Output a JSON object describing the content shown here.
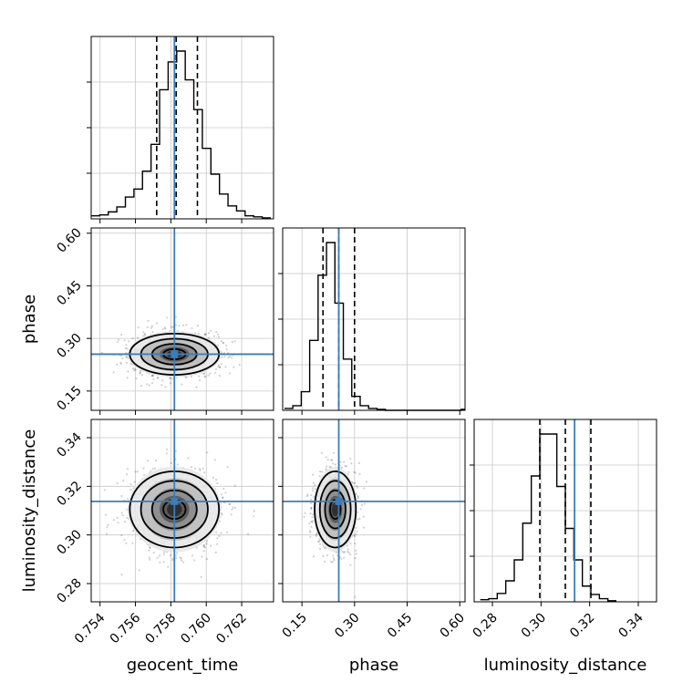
{
  "chart_data": {
    "type": "corner",
    "params": [
      {
        "name": "geocent_time",
        "label": "geocent_time",
        "range": [
          0.7535,
          0.7638
        ],
        "ticks": [
          0.754,
          0.756,
          0.758,
          0.76,
          0.762
        ],
        "tick_labels": [
          "0.754",
          "0.756",
          "0.758",
          "0.760",
          "0.762"
        ],
        "truth": 0.7582,
        "quantiles": [
          0.7572,
          0.7583,
          0.7595
        ],
        "hist_edges_start": 0.7535,
        "hist_bin_width": 0.000483,
        "hist_counts": [
          3,
          4,
          7,
          12,
          22,
          30,
          48,
          75,
          130,
          158,
          169,
          140,
          110,
          71,
          45,
          25,
          13,
          8,
          3,
          2,
          1
        ]
      },
      {
        "name": "phase",
        "label": "phase",
        "range": [
          0.095,
          0.615
        ],
        "ticks": [
          0.15,
          0.3,
          0.45,
          0.6
        ],
        "tick_labels": [
          "0.15",
          "0.30",
          "0.45",
          "0.60"
        ],
        "truth": 0.255,
        "quantiles": [
          0.21,
          0.255,
          0.3
        ],
        "hist_edges_start": 0.1,
        "hist_bin_width": 0.024,
        "hist_counts": [
          2,
          5,
          20,
          75,
          145,
          180,
          115,
          55,
          15,
          5,
          2,
          1,
          0,
          0,
          0,
          0,
          0,
          0,
          0,
          0,
          0,
          1
        ]
      },
      {
        "name": "luminosity_distance",
        "label": "luminosity_distance",
        "range": [
          0.2725,
          0.3475
        ],
        "ticks": [
          0.28,
          0.3,
          0.32,
          0.34
        ],
        "tick_labels": [
          "0.28",
          "0.30",
          "0.32",
          "0.34"
        ],
        "truth": 0.3138,
        "quantiles": [
          0.2995,
          0.31,
          0.3205
        ],
        "hist_edges_start": 0.275,
        "hist_bin_width": 0.0035,
        "hist_counts": [
          2,
          3,
          8,
          20,
          40,
          75,
          120,
          160,
          160,
          110,
          70,
          40,
          15,
          7,
          3,
          1
        ]
      }
    ],
    "pairs": [
      {
        "x": "geocent_time",
        "y": "phase",
        "center": [
          0.7582,
          0.255
        ],
        "sigma": [
          0.0012,
          0.03
        ],
        "contour_sigmas": [
          0.5,
          1.0,
          1.5,
          2.0
        ]
      },
      {
        "x": "geocent_time",
        "y": "luminosity_distance",
        "center": [
          0.7582,
          0.3105
        ],
        "sigma": [
          0.0012,
          0.008
        ],
        "contour_sigmas": [
          0.5,
          1.0,
          1.5,
          2.0
        ]
      },
      {
        "x": "phase",
        "y": "luminosity_distance",
        "center": [
          0.245,
          0.3105
        ],
        "sigma": [
          0.028,
          0.008
        ],
        "contour_sigmas": [
          0.5,
          1.0,
          1.5,
          2.0
        ]
      }
    ],
    "truth_color": "#3b7db8",
    "grid": true
  }
}
